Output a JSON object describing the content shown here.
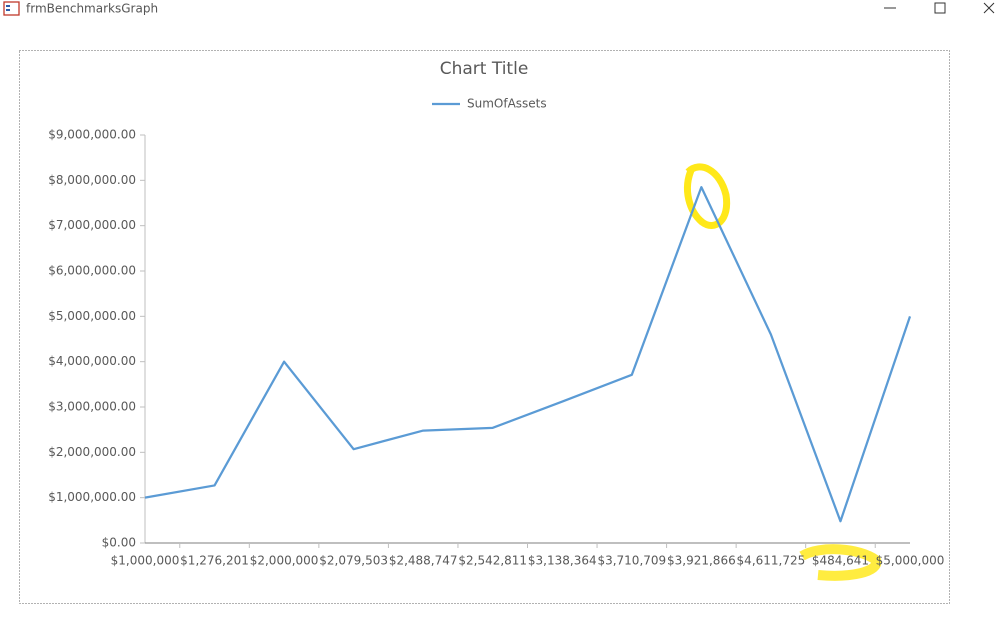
{
  "window": {
    "title": "frmBenchmarksGraph"
  },
  "chart_data": {
    "type": "line",
    "title": "Chart Title",
    "categories": [
      "$1,000,000",
      "$1,276,201",
      "$2,000,000",
      "$2,079,503",
      "$2,488,747",
      "$2,542,811",
      "$3,138,364",
      "$3,710,709",
      "$3,921,866",
      "$4,611,725",
      "$484,641",
      "$5,000,000"
    ],
    "series": [
      {
        "name": "SumOfAssets",
        "color": "#5b9bd5",
        "values": [
          1000000,
          1270000,
          4000000,
          2070000,
          2480000,
          2540000,
          3120000,
          3710000,
          7850000,
          4600000,
          480000,
          5000000
        ]
      }
    ],
    "ylim": [
      0,
      9000000
    ],
    "yticks": [
      {
        "value": 0,
        "label": "$0.00"
      },
      {
        "value": 1000000,
        "label": "$1,000,000.00"
      },
      {
        "value": 2000000,
        "label": "$2,000,000.00"
      },
      {
        "value": 3000000,
        "label": "$3,000,000.00"
      },
      {
        "value": 4000000,
        "label": "$4,000,000.00"
      },
      {
        "value": 5000000,
        "label": "$5,000,000.00"
      },
      {
        "value": 6000000,
        "label": "$6,000,000.00"
      },
      {
        "value": 7000000,
        "label": "$7,000,000.00"
      },
      {
        "value": 8000000,
        "label": "$8,000,000.00"
      },
      {
        "value": 9000000,
        "label": "$9,000,000.00"
      }
    ],
    "grid": false,
    "legend": "top"
  }
}
